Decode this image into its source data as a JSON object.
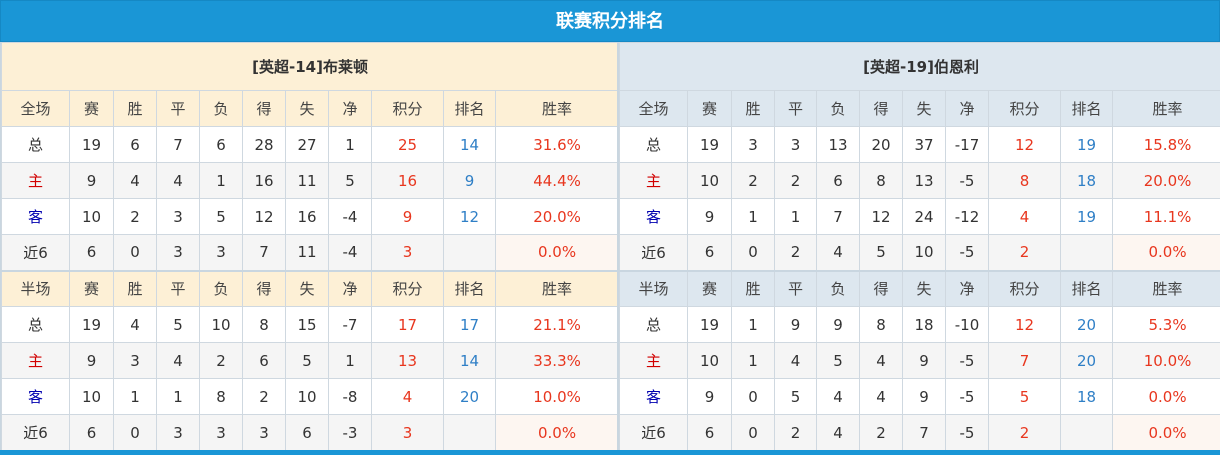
{
  "title": "联赛积分排名",
  "colors": {
    "accent": "#1a96d6",
    "points": "#e8361e",
    "rank": "#2f7fc6"
  },
  "teams": [
    {
      "name": "[英超-14]布莱顿",
      "full": {
        "header": [
          "全场",
          "赛",
          "胜",
          "平",
          "负",
          "得",
          "失",
          "净",
          "积分",
          "排名",
          "胜率"
        ],
        "rows": [
          [
            "总",
            "19",
            "6",
            "7",
            "6",
            "28",
            "27",
            "1",
            "25",
            "14",
            "31.6%"
          ],
          [
            "主",
            "9",
            "4",
            "4",
            "1",
            "16",
            "11",
            "5",
            "16",
            "9",
            "44.4%"
          ],
          [
            "客",
            "10",
            "2",
            "3",
            "5",
            "12",
            "16",
            "-4",
            "9",
            "12",
            "20.0%"
          ],
          [
            "近6",
            "6",
            "0",
            "3",
            "3",
            "7",
            "11",
            "-4",
            "3",
            "",
            "0.0%"
          ]
        ]
      },
      "half": {
        "header": [
          "半场",
          "赛",
          "胜",
          "平",
          "负",
          "得",
          "失",
          "净",
          "积分",
          "排名",
          "胜率"
        ],
        "rows": [
          [
            "总",
            "19",
            "4",
            "5",
            "10",
            "8",
            "15",
            "-7",
            "17",
            "17",
            "21.1%"
          ],
          [
            "主",
            "9",
            "3",
            "4",
            "2",
            "6",
            "5",
            "1",
            "13",
            "14",
            "33.3%"
          ],
          [
            "客",
            "10",
            "1",
            "1",
            "8",
            "2",
            "10",
            "-8",
            "4",
            "20",
            "10.0%"
          ],
          [
            "近6",
            "6",
            "0",
            "3",
            "3",
            "3",
            "6",
            "-3",
            "3",
            "",
            "0.0%"
          ]
        ]
      }
    },
    {
      "name": "[英超-19]伯恩利",
      "full": {
        "header": [
          "全场",
          "赛",
          "胜",
          "平",
          "负",
          "得",
          "失",
          "净",
          "积分",
          "排名",
          "胜率"
        ],
        "rows": [
          [
            "总",
            "19",
            "3",
            "3",
            "13",
            "20",
            "37",
            "-17",
            "12",
            "19",
            "15.8%"
          ],
          [
            "主",
            "10",
            "2",
            "2",
            "6",
            "8",
            "13",
            "-5",
            "8",
            "18",
            "20.0%"
          ],
          [
            "客",
            "9",
            "1",
            "1",
            "7",
            "12",
            "24",
            "-12",
            "4",
            "19",
            "11.1%"
          ],
          [
            "近6",
            "6",
            "0",
            "2",
            "4",
            "5",
            "10",
            "-5",
            "2",
            "",
            "0.0%"
          ]
        ]
      },
      "half": {
        "header": [
          "半场",
          "赛",
          "胜",
          "平",
          "负",
          "得",
          "失",
          "净",
          "积分",
          "排名",
          "胜率"
        ],
        "rows": [
          [
            "总",
            "19",
            "1",
            "9",
            "9",
            "8",
            "18",
            "-10",
            "12",
            "20",
            "5.3%"
          ],
          [
            "主",
            "10",
            "1",
            "4",
            "5",
            "4",
            "9",
            "-5",
            "7",
            "20",
            "10.0%"
          ],
          [
            "客",
            "9",
            "0",
            "5",
            "4",
            "4",
            "9",
            "-5",
            "5",
            "18",
            "0.0%"
          ],
          [
            "近6",
            "6",
            "0",
            "2",
            "4",
            "2",
            "7",
            "-5",
            "2",
            "",
            "0.0%"
          ]
        ]
      }
    }
  ]
}
